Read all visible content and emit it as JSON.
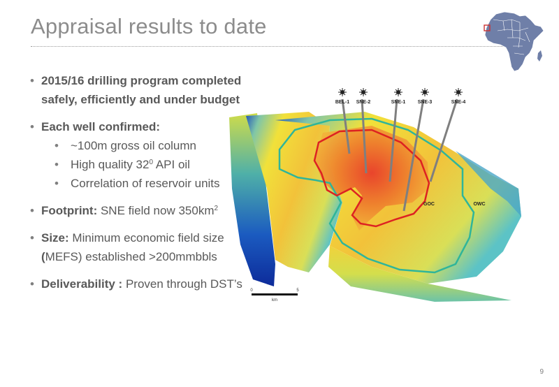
{
  "slide": {
    "title": "Appraisal results to date",
    "page_number": "9"
  },
  "bullets": {
    "b1": "2015/16 drilling program completed safely, efficiently and under budget",
    "b2": "Each well confirmed:",
    "b2_sub": [
      "~100m gross oil column",
      "High quality 32",
      "Correlation of reservoir units"
    ],
    "b2_sub_degree": "0",
    "b2_sub_suffix": " API oil",
    "b3_label": "Footprint:",
    "b3_text": " SNE field now 350km",
    "b3_sup": "2",
    "b4_label": "Size:",
    "b4_text": " Minimum economic field size",
    "b4_open": "(",
    "b4_text2": "MEFS) established >200mmbbls",
    "b5_label": "Deliverability :",
    "b5_text": " Proven through DST’s"
  },
  "figure": {
    "wells": [
      "BEL-1",
      "SNE-2",
      "SNE-1",
      "SNE-3",
      "SNE-4"
    ],
    "goc_label": "GOC",
    "owc_label": "OWC",
    "scale": {
      "start": "0",
      "end": "5",
      "unit": "km"
    },
    "colors": {
      "oil_contact": "#dd2222",
      "water_contact": "#2fb59a",
      "deep": "#0d2b9a"
    }
  }
}
